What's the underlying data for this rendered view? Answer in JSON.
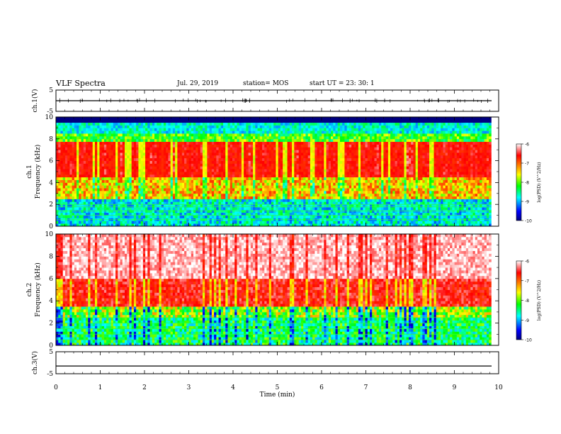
{
  "header": {
    "title": "VLF Spectra",
    "date": "Jul. 29, 2019",
    "station": "station= MOS",
    "start_ut": "start UT =  23: 30: 1"
  },
  "chart_data": [
    {
      "type": "line",
      "panel": "ch1-waveform",
      "ylabel": "ch.1(V)",
      "ylim": [
        -5,
        5
      ],
      "yticks": [
        "5",
        "-5"
      ],
      "x": [
        0,
        10
      ],
      "values": [
        0,
        0
      ],
      "style": "near-constant trace with small spikes"
    },
    {
      "type": "heatmap",
      "panel": "ch1-spectrogram",
      "ylabel": "Frequency (kHz)",
      "channel_label": "ch.1",
      "ylim": [
        0,
        10
      ],
      "yticks": [
        "0",
        "2",
        "4",
        "6",
        "8",
        "10"
      ],
      "xlim": [
        0,
        9.83
      ],
      "data_end_min": 9.83,
      "features": {
        "cutoff_kHz": 9.5,
        "broadband_red_band_kHz": [
          4.5,
          7.8
        ],
        "harmonic_lines_kHz": [
          0.6,
          1.0,
          1.4,
          1.8,
          2.0
        ]
      },
      "colorbar": {
        "label": "log(PSD) (V^2/Hz)",
        "min": -10,
        "max": -6,
        "ticks": [
          "-6",
          "-7",
          "-8",
          "-9",
          "-10"
        ]
      }
    },
    {
      "type": "heatmap",
      "panel": "ch2-spectrogram",
      "ylabel": "Frequency (kHz)",
      "channel_label": "ch.2",
      "ylim": [
        0,
        10
      ],
      "yticks": [
        "0",
        "2",
        "4",
        "6",
        "8",
        "10"
      ],
      "xlim": [
        0,
        9.83
      ],
      "data_end_min": 9.83,
      "features": {
        "broadband_red_band_kHz": [
          3.5,
          10
        ],
        "harmonic_lines_kHz": [
          0.5,
          1.0,
          1.5,
          2.0,
          2.5
        ]
      },
      "colorbar": {
        "label": "log(PSD) (V^2/Hz)",
        "min": -10,
        "max": -6,
        "ticks": [
          "-6",
          "-7",
          "-8",
          "-9",
          "-10"
        ]
      }
    },
    {
      "type": "line",
      "panel": "ch3-waveform",
      "ylabel": "ch.3(V)",
      "ylim": [
        -5,
        5
      ],
      "yticks": [
        "5",
        "-5"
      ],
      "x": [
        0,
        10
      ],
      "values": [
        -1.5,
        -1.5
      ]
    }
  ],
  "xaxis": {
    "label": "Time (min)",
    "range": [
      0,
      10
    ],
    "ticks": [
      "0",
      "1",
      "2",
      "3",
      "4",
      "5",
      "6",
      "7",
      "8",
      "9",
      "10"
    ]
  }
}
